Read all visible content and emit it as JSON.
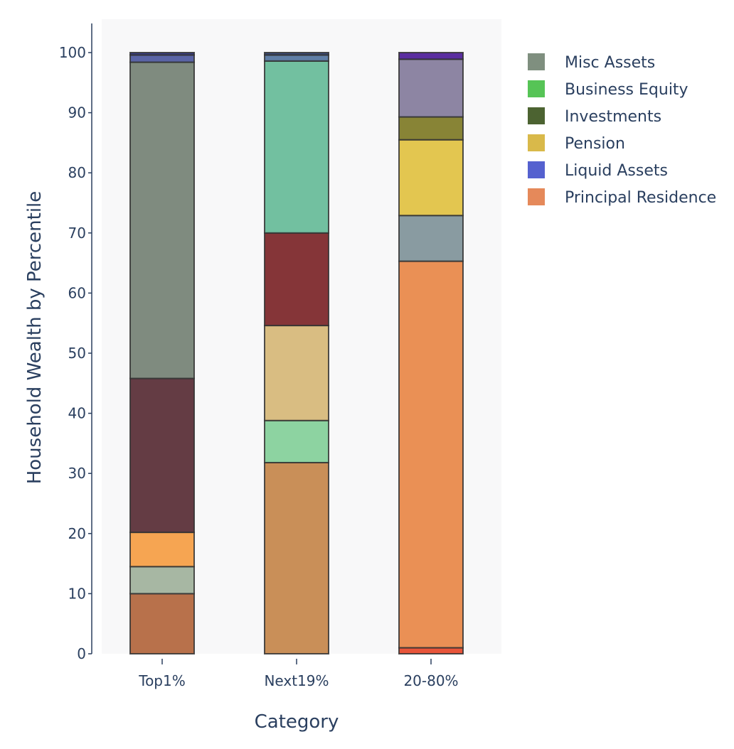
{
  "chart_data": {
    "type": "bar",
    "stacked": true,
    "xlabel": "Category",
    "ylabel": "Household Wealth by Percentile",
    "ylim": [
      0,
      100
    ],
    "yticks": [
      0,
      10,
      20,
      30,
      40,
      50,
      60,
      70,
      80,
      90,
      100
    ],
    "categories": [
      "Top1%",
      "Next19%",
      "20-80%"
    ],
    "legend_position": "top-right",
    "legend": [
      {
        "label": "Misc Assets",
        "color": "#7f8f7f"
      },
      {
        "label": "Business Equity",
        "color": "#56c456"
      },
      {
        "label": "Investments",
        "color": "#4c6331"
      },
      {
        "label": "Pension",
        "color": "#d9b94a"
      },
      {
        "label": "Liquid Assets",
        "color": "#5561cf"
      },
      {
        "label": "Principal Residence",
        "color": "#e5895a"
      }
    ],
    "stacks": [
      {
        "category": "Top1%",
        "segments": [
          {
            "value": 10.0,
            "color": "#b8714b"
          },
          {
            "value": 4.5,
            "color": "#a7b7a3"
          },
          {
            "value": 5.7,
            "color": "#f6a552"
          },
          {
            "value": 25.6,
            "color": "#643c44"
          },
          {
            "value": 52.6,
            "color": "#7f8b7f"
          },
          {
            "value": 1.2,
            "color": "#5a64a6"
          },
          {
            "value": 0.4,
            "color": "#3a3f86"
          }
        ]
      },
      {
        "category": "Next19%",
        "segments": [
          {
            "value": 31.8,
            "color": "#c98f58"
          },
          {
            "value": 7.0,
            "color": "#8dd3a1"
          },
          {
            "value": 15.8,
            "color": "#d9bd82"
          },
          {
            "value": 15.4,
            "color": "#853538"
          },
          {
            "value": 28.6,
            "color": "#72c0a0"
          },
          {
            "value": 1.0,
            "color": "#5f7ea6"
          },
          {
            "value": 0.4,
            "color": "#3c4c7a"
          }
        ]
      },
      {
        "category": "20-80%",
        "segments": [
          {
            "value": 1.0,
            "color": "#e8553a"
          },
          {
            "value": 64.3,
            "color": "#ea9055"
          },
          {
            "value": 7.6,
            "color": "#899ba1"
          },
          {
            "value": 12.6,
            "color": "#e3c650"
          },
          {
            "value": 3.8,
            "color": "#888436"
          },
          {
            "value": 9.6,
            "color": "#8d85a3"
          },
          {
            "value": 1.1,
            "color": "#5b2ea0"
          }
        ]
      }
    ]
  }
}
